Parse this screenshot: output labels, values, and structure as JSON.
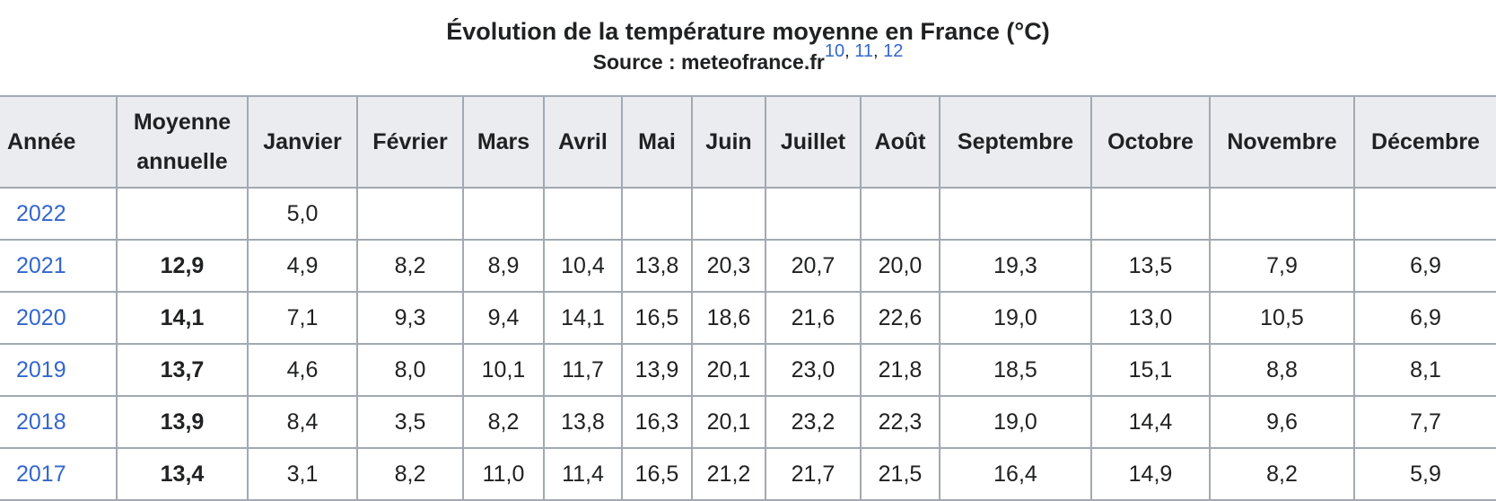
{
  "caption": {
    "title": "Évolution de la température moyenne en France (°C)",
    "source": "Source : meteofrance.fr",
    "refs": [
      "10",
      "11",
      "12"
    ]
  },
  "table": {
    "headers": [
      "Année",
      "Moyenne annuelle",
      "Janvier",
      "Février",
      "Mars",
      "Avril",
      "Mai",
      "Juin",
      "Juillet",
      "Août",
      "Septembre",
      "Octobre",
      "Novembre",
      "Décembre"
    ],
    "rows": [
      [
        "2022",
        "",
        "5,0",
        "",
        "",
        "",
        "",
        "",
        "",
        "",
        "",
        "",
        "",
        ""
      ],
      [
        "2021",
        "12,9",
        "4,9",
        "8,2",
        "8,9",
        "10,4",
        "13,8",
        "20,3",
        "20,7",
        "20,0",
        "19,3",
        "13,5",
        "7,9",
        "6,9"
      ],
      [
        "2020",
        "14,1",
        "7,1",
        "9,3",
        "9,4",
        "14,1",
        "16,5",
        "18,6",
        "21,6",
        "22,6",
        "19,0",
        "13,0",
        "10,5",
        "6,9"
      ],
      [
        "2019",
        "13,7",
        "4,6",
        "8,0",
        "10,1",
        "11,7",
        "13,9",
        "20,1",
        "23,0",
        "21,8",
        "18,5",
        "15,1",
        "8,8",
        "8,1"
      ],
      [
        "2018",
        "13,9",
        "8,4",
        "3,5",
        "8,2",
        "13,8",
        "16,3",
        "20,1",
        "23,2",
        "22,3",
        "19,0",
        "14,4",
        "9,6",
        "7,7"
      ],
      [
        "2017",
        "13,4",
        "3,1",
        "8,2",
        "11,0",
        "11,4",
        "16,5",
        "21,2",
        "21,7",
        "21,5",
        "16,4",
        "14,9",
        "8,2",
        "5,9"
      ]
    ]
  }
}
